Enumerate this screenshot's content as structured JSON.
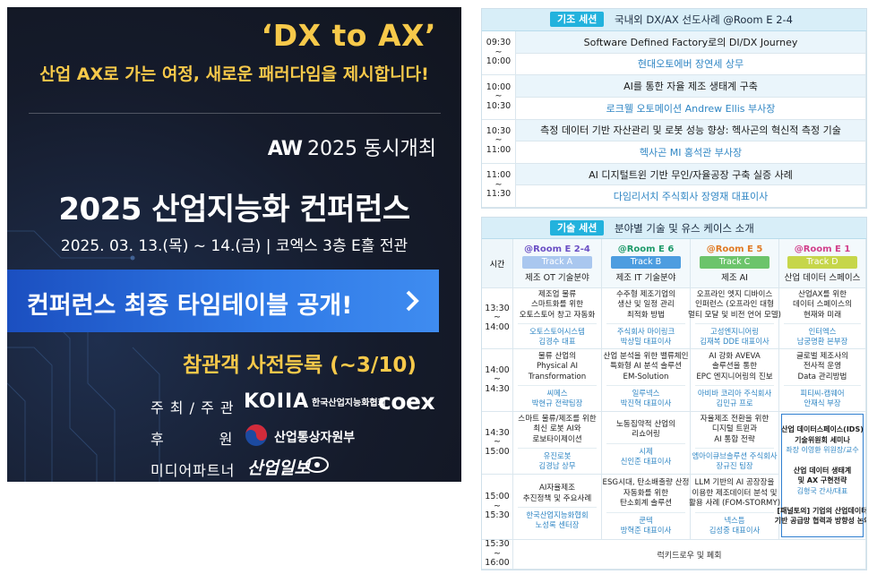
{
  "banner": {
    "headline": "‘DX to AX’",
    "subtitle": "산업 AX로 가는 여정, 새로운 패러다임을 제시합니다!",
    "co_event_brand": "AW",
    "co_event_text": "2025 동시개최",
    "title": "2025 산업지능화 컨퍼런스",
    "date_venue": "2025. 03. 13.(목) ~ 14.(금) | 코엑스 3층 E홀 전관",
    "button": "컨퍼런스 최종 타임테이블 공개!",
    "registration": "참관객 사전등록 (~3/10)",
    "sponsors": [
      {
        "label": "주 최 / 주 관",
        "logos": [
          "KOIIA",
          "한국산업지능화협회",
          "coex"
        ]
      },
      {
        "label": "후          원",
        "logos": [
          "산업통상자원부"
        ]
      },
      {
        "label": "미디어파트너",
        "logos": [
          "산업일보"
        ]
      }
    ]
  },
  "keynote": {
    "badge": "기조 세션",
    "title": "국내외 DX/AX 선도사례 @Room E 2-4",
    "rows": [
      {
        "time": [
          "09:30",
          "~",
          "10:00"
        ],
        "title": "Software Defined Factory로의 DI/DX Journey",
        "speaker": "현대오토에버 장연세 상무"
      },
      {
        "time": [
          "10:00",
          "~",
          "10:30"
        ],
        "title": "AI를 통한 자율 제조 생태계 구축",
        "speaker": "로크웰 오토메이션 Andrew Ellis 부사장"
      },
      {
        "time": [
          "10:30",
          "~",
          "11:00"
        ],
        "title": "측정 데이터 기반 자산관리 및 로봇 성능 향상: 헥사곤의 혁신적 측정 기술",
        "speaker": "헥사곤 MI 홍석관 부사장"
      },
      {
        "time": [
          "11:00",
          "~",
          "11:30"
        ],
        "title": "AI 디지털트윈 기반 무인/자율공장 구축 실증 사례",
        "speaker": "다임리서치 주식회사 장영재 대표이사"
      }
    ]
  },
  "tech": {
    "badge": "기술 세션",
    "title": "분야별 기술 및 유스 케이스 소개",
    "time_header": "시간",
    "tracks": [
      {
        "room": "@Room E 2-4",
        "track": "Track A",
        "field": "제조 OT 기술분야",
        "room_color": "#6a4fc4",
        "badge_color": "#a9c7ef"
      },
      {
        "room": "@Room E 6",
        "track": "Track B",
        "field": "제조 IT 기술분야",
        "room_color": "#1e9a6a",
        "badge_color": "#4d9de0"
      },
      {
        "room": "@Room E 5",
        "track": "Track C",
        "field": "제조 AI",
        "room_color": "#e07a24",
        "badge_color": "#6cc46b"
      },
      {
        "room": "@Room E 1",
        "track": "Track D",
        "field": "산업 데이터 스페이스",
        "room_color": "#d13f8b",
        "badge_color": "#c6d64a"
      }
    ],
    "rows": [
      {
        "time": [
          "13:30",
          "~",
          "14:00"
        ],
        "cells": [
          {
            "title": [
              "제조업 물류",
              "스마트화를 위한",
              "오토스토어 창고 자동화"
            ],
            "speaker": [
              "오토스토어시스템",
              "김경수 대표"
            ]
          },
          {
            "title": [
              "수주형 제조기업의",
              "생산 및 일정 관리",
              "최적화 방법"
            ],
            "speaker": [
              "주식회사 마이링크",
              "박상밀 대표이사"
            ]
          },
          {
            "title": [
              "오프라인 엣지 디바이스",
              "인퍼런스 (오프라인 대형",
              "멀티 모달 및 비전 언어 모델)"
            ],
            "speaker": [
              "고성엔지니어링",
              "김재복 DDE 대표이사"
            ]
          },
          {
            "title": [
              "산업AX를 위한",
              "데이터 스페이스의",
              "현재와 미래"
            ],
            "speaker": [
              "인터엑스",
              "남궁명환 본부장"
            ]
          }
        ]
      },
      {
        "time": [
          "14:00",
          "~",
          "14:30"
        ],
        "cells": [
          {
            "title": [
              "물류 산업의",
              "Physical AI",
              "Transformation"
            ],
            "speaker": [
              "씨메스",
              "박현규 전략팀장"
            ]
          },
          {
            "title": [
              "산업 분석을 위한 밸류체인",
              "특화형 AI 분석 솔루션",
              "EM-Solution"
            ],
            "speaker": [
              "일루넥스",
              "박진혁 대표이사"
            ]
          },
          {
            "title": [
              "AI 강화 AVEVA",
              "솔루션을 통한",
              "EPC 엔지니어링의 진보"
            ],
            "speaker": [
              "아비바 코리아 주식회사",
              "김민규 프로"
            ]
          },
          {
            "title": [
              "글로벌 제조사의",
              "전사적 운영",
              "Data 관리방법"
            ],
            "speaker": [
              "피티씨-캡웨어",
              "안재식 부장"
            ]
          }
        ]
      },
      {
        "time": [
          "14:30",
          "~",
          "15:00"
        ],
        "cells": [
          {
            "title": [
              "스마트 물류/제조를 위한",
              "최신 로봇 AI와",
              "로보타이제이션"
            ],
            "speaker": [
              "유진로봇",
              "김경남 상무"
            ]
          },
          {
            "title": [
              "노동집약적 산업의",
              "리쇼어링"
            ],
            "speaker": [
              "시제",
              "신인준 대표이사"
            ]
          },
          {
            "title": [
              "자율제조 전환을 위한",
              "디지털 트윈과",
              "AI 통합 전략"
            ],
            "speaker": [
              "엠아이큐브솔루션 주식회사",
              "장규진 팀장"
            ]
          }
        ]
      },
      {
        "time": [
          "15:00",
          "~",
          "15:30"
        ],
        "cells": [
          {
            "title": [
              "AI자율제조",
              "추진정책 및 주요사례"
            ],
            "speaker": [
              "한국산업지능화협회",
              "노성록 센터장"
            ]
          },
          {
            "title": [
              "ESG시대, 탄소배출량 산정",
              "자동화를 위한",
              "탄소회계 솔루션"
            ],
            "speaker": [
              "쿤텍",
              "방혁준 대표이사"
            ]
          },
          {
            "title": [
              "LLM 기반의 AI 공장장을",
              "이용한 제조데이터 분석 및",
              "활용 사례 (FOM-STORMY)"
            ],
            "speaker": [
              "넥스틈",
              "김성중 대표이사"
            ]
          }
        ]
      }
    ],
    "track_d_session": [
      {
        "text": [
          "산업 데이터스페이스(IDS)",
          "기술위원회 세미나"
        ],
        "speaker": [
          "좌장 이영환 위원장/교수"
        ]
      },
      {
        "text": [
          "산업 데이터 생태계",
          "및 AX 구현전략"
        ],
        "speaker": [
          "김형국 간사/대표"
        ]
      },
      {
        "text": [
          "[패널토의] 기업의 산업데이터",
          "기반 공급망 협력과 방향성 논의"
        ]
      }
    ],
    "closing": {
      "time": [
        "15:30",
        "~",
        "16:00"
      ],
      "text": "럭키드로우 및 폐회"
    }
  }
}
